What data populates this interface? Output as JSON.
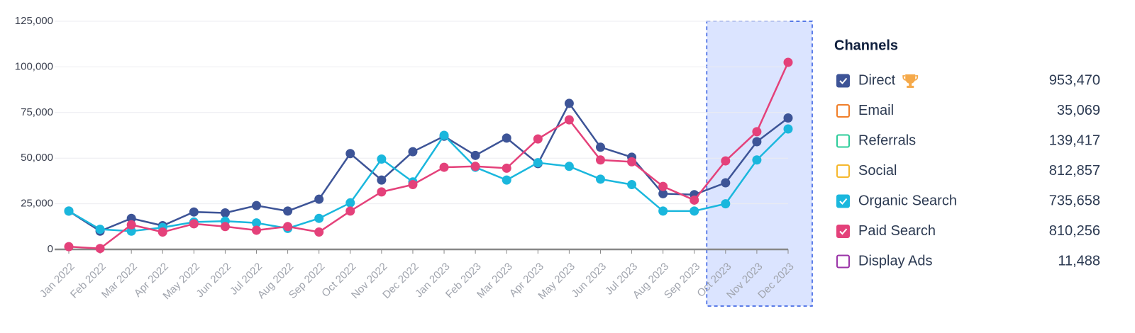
{
  "chart_data": {
    "type": "line",
    "categories": [
      "Jan 2022",
      "Feb 2022",
      "Mar 2022",
      "Apr 2022",
      "May 2022",
      "Jun 2022",
      "Jul 2022",
      "Aug 2022",
      "Sep 2022",
      "Oct 2022",
      "Nov 2022",
      "Dec 2022",
      "Jan 2023",
      "Feb 2023",
      "Mar 2023",
      "Apr 2023",
      "May 2023",
      "Jun 2023",
      "Jul 2023",
      "Aug 2023",
      "Sep 2023",
      "Oct 2023",
      "Nov 2023",
      "Dec 2023"
    ],
    "ylim": [
      0,
      125000
    ],
    "yticks": [
      0,
      {
        "value": 25000,
        "label": "25,000"
      },
      {
        "value": 50000,
        "label": "50,000"
      },
      {
        "value": 75000,
        "label": "75,000"
      },
      {
        "value": 100000,
        "label": "100,000"
      },
      {
        "value": 125000,
        "label": "125,000"
      }
    ],
    "grid": true,
    "highlight": {
      "from": "Oct 2023",
      "to": "Dec 2023"
    },
    "legend_title": "Channels",
    "channels": [
      {
        "name": "Direct",
        "color": "#3d5497",
        "checked": true,
        "total": 953470,
        "total_label": "953,470",
        "values": [
          21000,
          10000,
          17000,
          13000,
          20500,
          20000,
          24000,
          21000,
          27500,
          52500,
          38000,
          53500,
          62000,
          51500,
          61000,
          47000,
          80000,
          56000,
          50500,
          30500,
          30000,
          36500,
          59000,
          72000
        ]
      },
      {
        "name": "Email",
        "color": "#f07f2a",
        "checked": false,
        "total": 35069,
        "total_label": "35,069"
      },
      {
        "name": "Referrals",
        "color": "#2ecc9a",
        "checked": false,
        "total": 139417,
        "total_label": "139,417"
      },
      {
        "name": "Social",
        "color": "#f5b82e",
        "checked": false,
        "total": 812857,
        "total_label": "812,857"
      },
      {
        "name": "Organic Search",
        "color": "#1ab7dd",
        "checked": true,
        "total": 735658,
        "total_label": "735,658",
        "values": [
          21000,
          11000,
          10000,
          12000,
          15000,
          15500,
          14500,
          11500,
          17000,
          25500,
          49500,
          37000,
          62500,
          45000,
          38000,
          47500,
          45500,
          38500,
          35500,
          21000,
          21000,
          25000,
          49000,
          66000
        ]
      },
      {
        "name": "Paid Search",
        "color": "#e4417a",
        "checked": true,
        "total": 810256,
        "total_label": "810,256",
        "values": [
          1500,
          500,
          13500,
          9500,
          14000,
          12500,
          10500,
          12500,
          9500,
          21000,
          31500,
          35500,
          45000,
          45500,
          44500,
          60500,
          71000,
          49000,
          48000,
          34500,
          27000,
          48500,
          64500,
          102500
        ]
      },
      {
        "name": "Display Ads",
        "color": "#9b35a8",
        "checked": false,
        "total": 11488,
        "total_label": "11,488"
      }
    ]
  }
}
